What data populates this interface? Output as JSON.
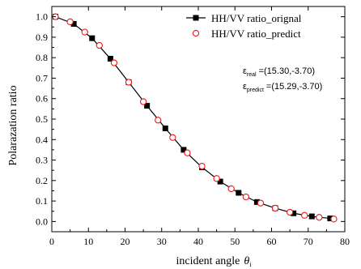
{
  "chart_data": {
    "type": "line",
    "xlabel": "incident angle",
    "xlabel_symbol": "θ",
    "xlabel_subscript": "i",
    "ylabel": "Polarazation ratio",
    "xlim": [
      0,
      80
    ],
    "ylim": [
      -0.05,
      1.05
    ],
    "x_ticks": [
      0,
      10,
      20,
      30,
      40,
      50,
      60,
      70,
      80
    ],
    "y_ticks": [
      0.0,
      0.1,
      0.2,
      0.3,
      0.4,
      0.5,
      0.6,
      0.7,
      0.8,
      0.9,
      1.0
    ],
    "y_tick_labels": [
      "0.0",
      "0.1",
      "0.2",
      "0.3",
      "0.4",
      "0.5",
      "0.6",
      "0.7",
      "0.8",
      "0.9",
      "1.0"
    ],
    "grid": false,
    "legend_position": "top-right",
    "series": [
      {
        "name": "HH/VV ratio_orignal",
        "marker": "filled-square",
        "color": "#000000",
        "line": true,
        "x": [
          1,
          6,
          11,
          16,
          21,
          26,
          31,
          36,
          41,
          46,
          51,
          56,
          61,
          66,
          71,
          76
        ],
        "y": [
          1.0,
          0.965,
          0.895,
          0.795,
          0.68,
          0.565,
          0.455,
          0.35,
          0.265,
          0.195,
          0.14,
          0.095,
          0.065,
          0.04,
          0.025,
          0.015
        ]
      },
      {
        "name": "HH/VV ratio_predict",
        "marker": "open-circle",
        "color": "#e8191c",
        "line": false,
        "x": [
          1,
          5,
          9,
          13,
          17,
          21,
          25,
          29,
          33,
          37,
          41,
          45,
          49,
          53,
          57,
          61,
          65,
          69,
          73,
          77
        ],
        "y": [
          1.0,
          0.975,
          0.925,
          0.86,
          0.775,
          0.68,
          0.585,
          0.495,
          0.41,
          0.335,
          0.27,
          0.21,
          0.16,
          0.12,
          0.09,
          0.065,
          0.045,
          0.03,
          0.02,
          0.012
        ]
      }
    ],
    "annotations": [
      {
        "symbol": "ε",
        "subscript": "real",
        "value": "=(15.30,-3.70)"
      },
      {
        "symbol": "ε",
        "subscript": "predict",
        "value": "=(15.29,-3.70)"
      }
    ]
  }
}
